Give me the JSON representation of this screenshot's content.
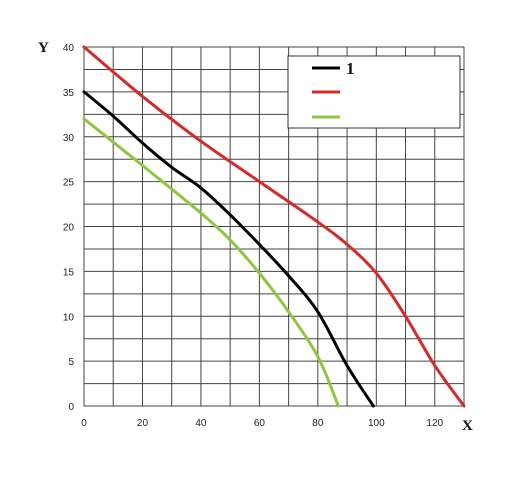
{
  "chart_data": {
    "type": "line",
    "title": "",
    "xlabel": "X",
    "ylabel": "Y",
    "xlim": [
      0,
      130
    ],
    "ylim": [
      0,
      40
    ],
    "x_ticks": [
      0,
      20,
      40,
      60,
      80,
      100,
      120
    ],
    "y_ticks": [
      0,
      5,
      10,
      15,
      20,
      25,
      30,
      35,
      40
    ],
    "grid": true,
    "legend": {
      "placement": "top-right",
      "entries": [
        {
          "label": "1",
          "color": "#000000"
        },
        {
          "label": "",
          "color": "#d42a2a"
        },
        {
          "label": "",
          "color": "#8dc63f"
        }
      ]
    },
    "series": [
      {
        "color": "#000000",
        "points": [
          [
            0,
            35
          ],
          [
            10,
            32.3
          ],
          [
            20,
            29.3
          ],
          [
            30,
            26.6
          ],
          [
            40,
            24.3
          ],
          [
            50,
            21.3
          ],
          [
            60,
            18
          ],
          [
            70,
            14.5
          ],
          [
            80,
            10.5
          ],
          [
            90,
            4.5
          ],
          [
            99,
            0
          ]
        ]
      },
      {
        "color": "#d42a2a",
        "points": [
          [
            0,
            40
          ],
          [
            20,
            34.5
          ],
          [
            40,
            29.5
          ],
          [
            60,
            25
          ],
          [
            80,
            20.5
          ],
          [
            90,
            18
          ],
          [
            100,
            14.8
          ],
          [
            110,
            10
          ],
          [
            120,
            4.5
          ],
          [
            130,
            0
          ]
        ]
      },
      {
        "color": "#8dc63f",
        "points": [
          [
            0,
            32
          ],
          [
            20,
            26.8
          ],
          [
            40,
            21.5
          ],
          [
            50,
            18.5
          ],
          [
            60,
            14.8
          ],
          [
            70,
            10.5
          ],
          [
            80,
            5.5
          ],
          [
            87,
            0
          ]
        ]
      }
    ]
  }
}
